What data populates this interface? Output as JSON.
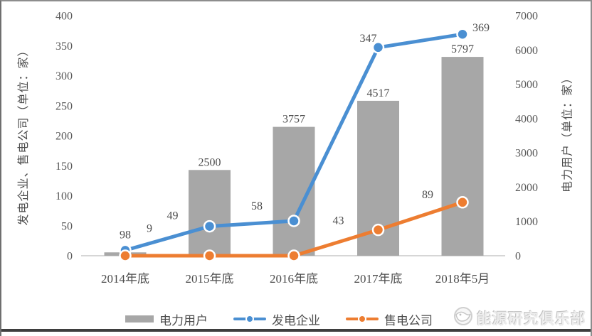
{
  "watermark": {
    "text": "能源研究俱乐部"
  },
  "chart_data": {
    "type": "combo",
    "categories": [
      "2014年底",
      "2015年底",
      "2016年底",
      "2017年底",
      "2018年5月"
    ],
    "series": [
      {
        "name": "电力用户",
        "type": "bar",
        "axis": "right",
        "color": "#a7a7a7",
        "values": [
          98,
          2500,
          3757,
          4517,
          5797
        ],
        "labels": [
          "98",
          "2500",
          "3757",
          "4517",
          "5797"
        ]
      },
      {
        "name": "发电企业",
        "type": "line",
        "axis": "left",
        "color": "#4a8fd2",
        "values": [
          9,
          49,
          58,
          347,
          369
        ],
        "labels": [
          "9",
          "49",
          "58",
          "347",
          "369"
        ]
      },
      {
        "name": "售电公司",
        "type": "line",
        "axis": "left",
        "color": "#ed7d31",
        "values": [
          0,
          0,
          0,
          43,
          89
        ],
        "labels": [
          "",
          "",
          "",
          "43",
          "89"
        ]
      }
    ],
    "left_axis": {
      "title": "发电企业、售电公司（单位：家）",
      "min": 0,
      "max": 400,
      "step": 50
    },
    "right_axis": {
      "title": "电力用户（单位：家）",
      "min": 0,
      "max": 7000,
      "step": 1000
    },
    "legend_position": "bottom",
    "grid": false,
    "axis_line_color": "#c9c9c9",
    "label_color": "#595959"
  }
}
